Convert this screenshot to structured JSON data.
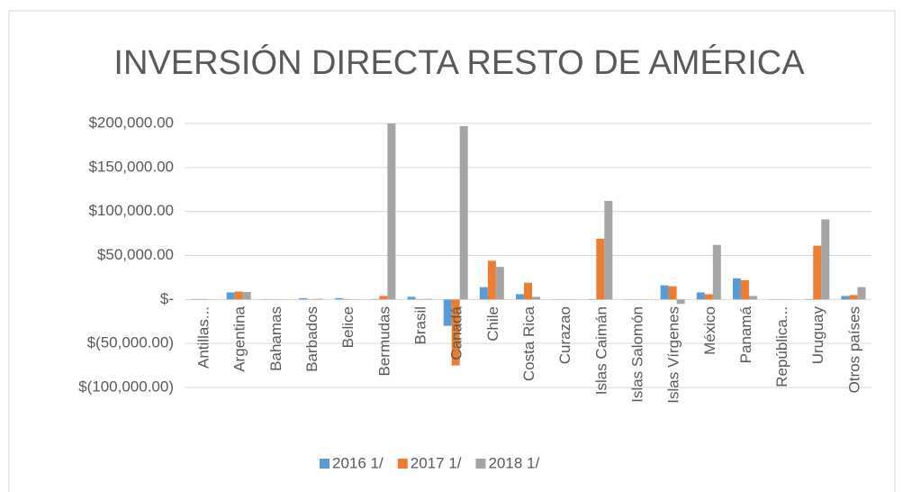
{
  "chart_data": {
    "type": "bar",
    "title": "INVERSIÓN DIRECTA RESTO DE AMÉRICA",
    "categories": [
      "Antillas...",
      "Argentina",
      "Bahamas",
      "Barbados",
      "Belice",
      "Bermudas",
      "Brasil",
      "Canadá",
      "Chile",
      "Costa Rica",
      "Curazao",
      "Islas Caimán",
      "Islas Salomón",
      "Islas Vírgenes",
      "México",
      "Panamá",
      "República...",
      "Uruguay",
      "Otros países"
    ],
    "series": [
      {
        "name": "2016 1/",
        "color": "#5b9bd5",
        "values": [
          500,
          8000,
          300,
          1500,
          1500,
          500,
          3000,
          -30000,
          14000,
          6000,
          200,
          500,
          200,
          16000,
          8000,
          24000,
          300,
          500,
          4000
        ]
      },
      {
        "name": "2017 1/",
        "color": "#ed7d31",
        "values": [
          500,
          9000,
          300,
          500,
          500,
          4000,
          500,
          -75000,
          44000,
          19000,
          300,
          69000,
          200,
          15000,
          6000,
          22000,
          300,
          61000,
          5000
        ]
      },
      {
        "name": "2018 1/",
        "color": "#a5a5a5",
        "values": [
          200,
          8500,
          200,
          800,
          300,
          200000,
          800,
          197000,
          37000,
          3000,
          300,
          112000,
          200,
          -5000,
          62000,
          4000,
          200,
          91000,
          14000
        ]
      }
    ],
    "ylim": [
      -100000,
      200000
    ],
    "yticks": [
      {
        "value": -100000,
        "label": "$(100,000.00)"
      },
      {
        "value": -50000,
        "label": "$(50,000.00)"
      },
      {
        "value": 0,
        "label": "$-"
      },
      {
        "value": 50000,
        "label": "$50,000.00"
      },
      {
        "value": 100000,
        "label": "$100,000.00"
      },
      {
        "value": 150000,
        "label": "$150,000.00"
      },
      {
        "value": 200000,
        "label": "$200,000.00"
      }
    ],
    "grid": true,
    "legend": "bottom"
  }
}
